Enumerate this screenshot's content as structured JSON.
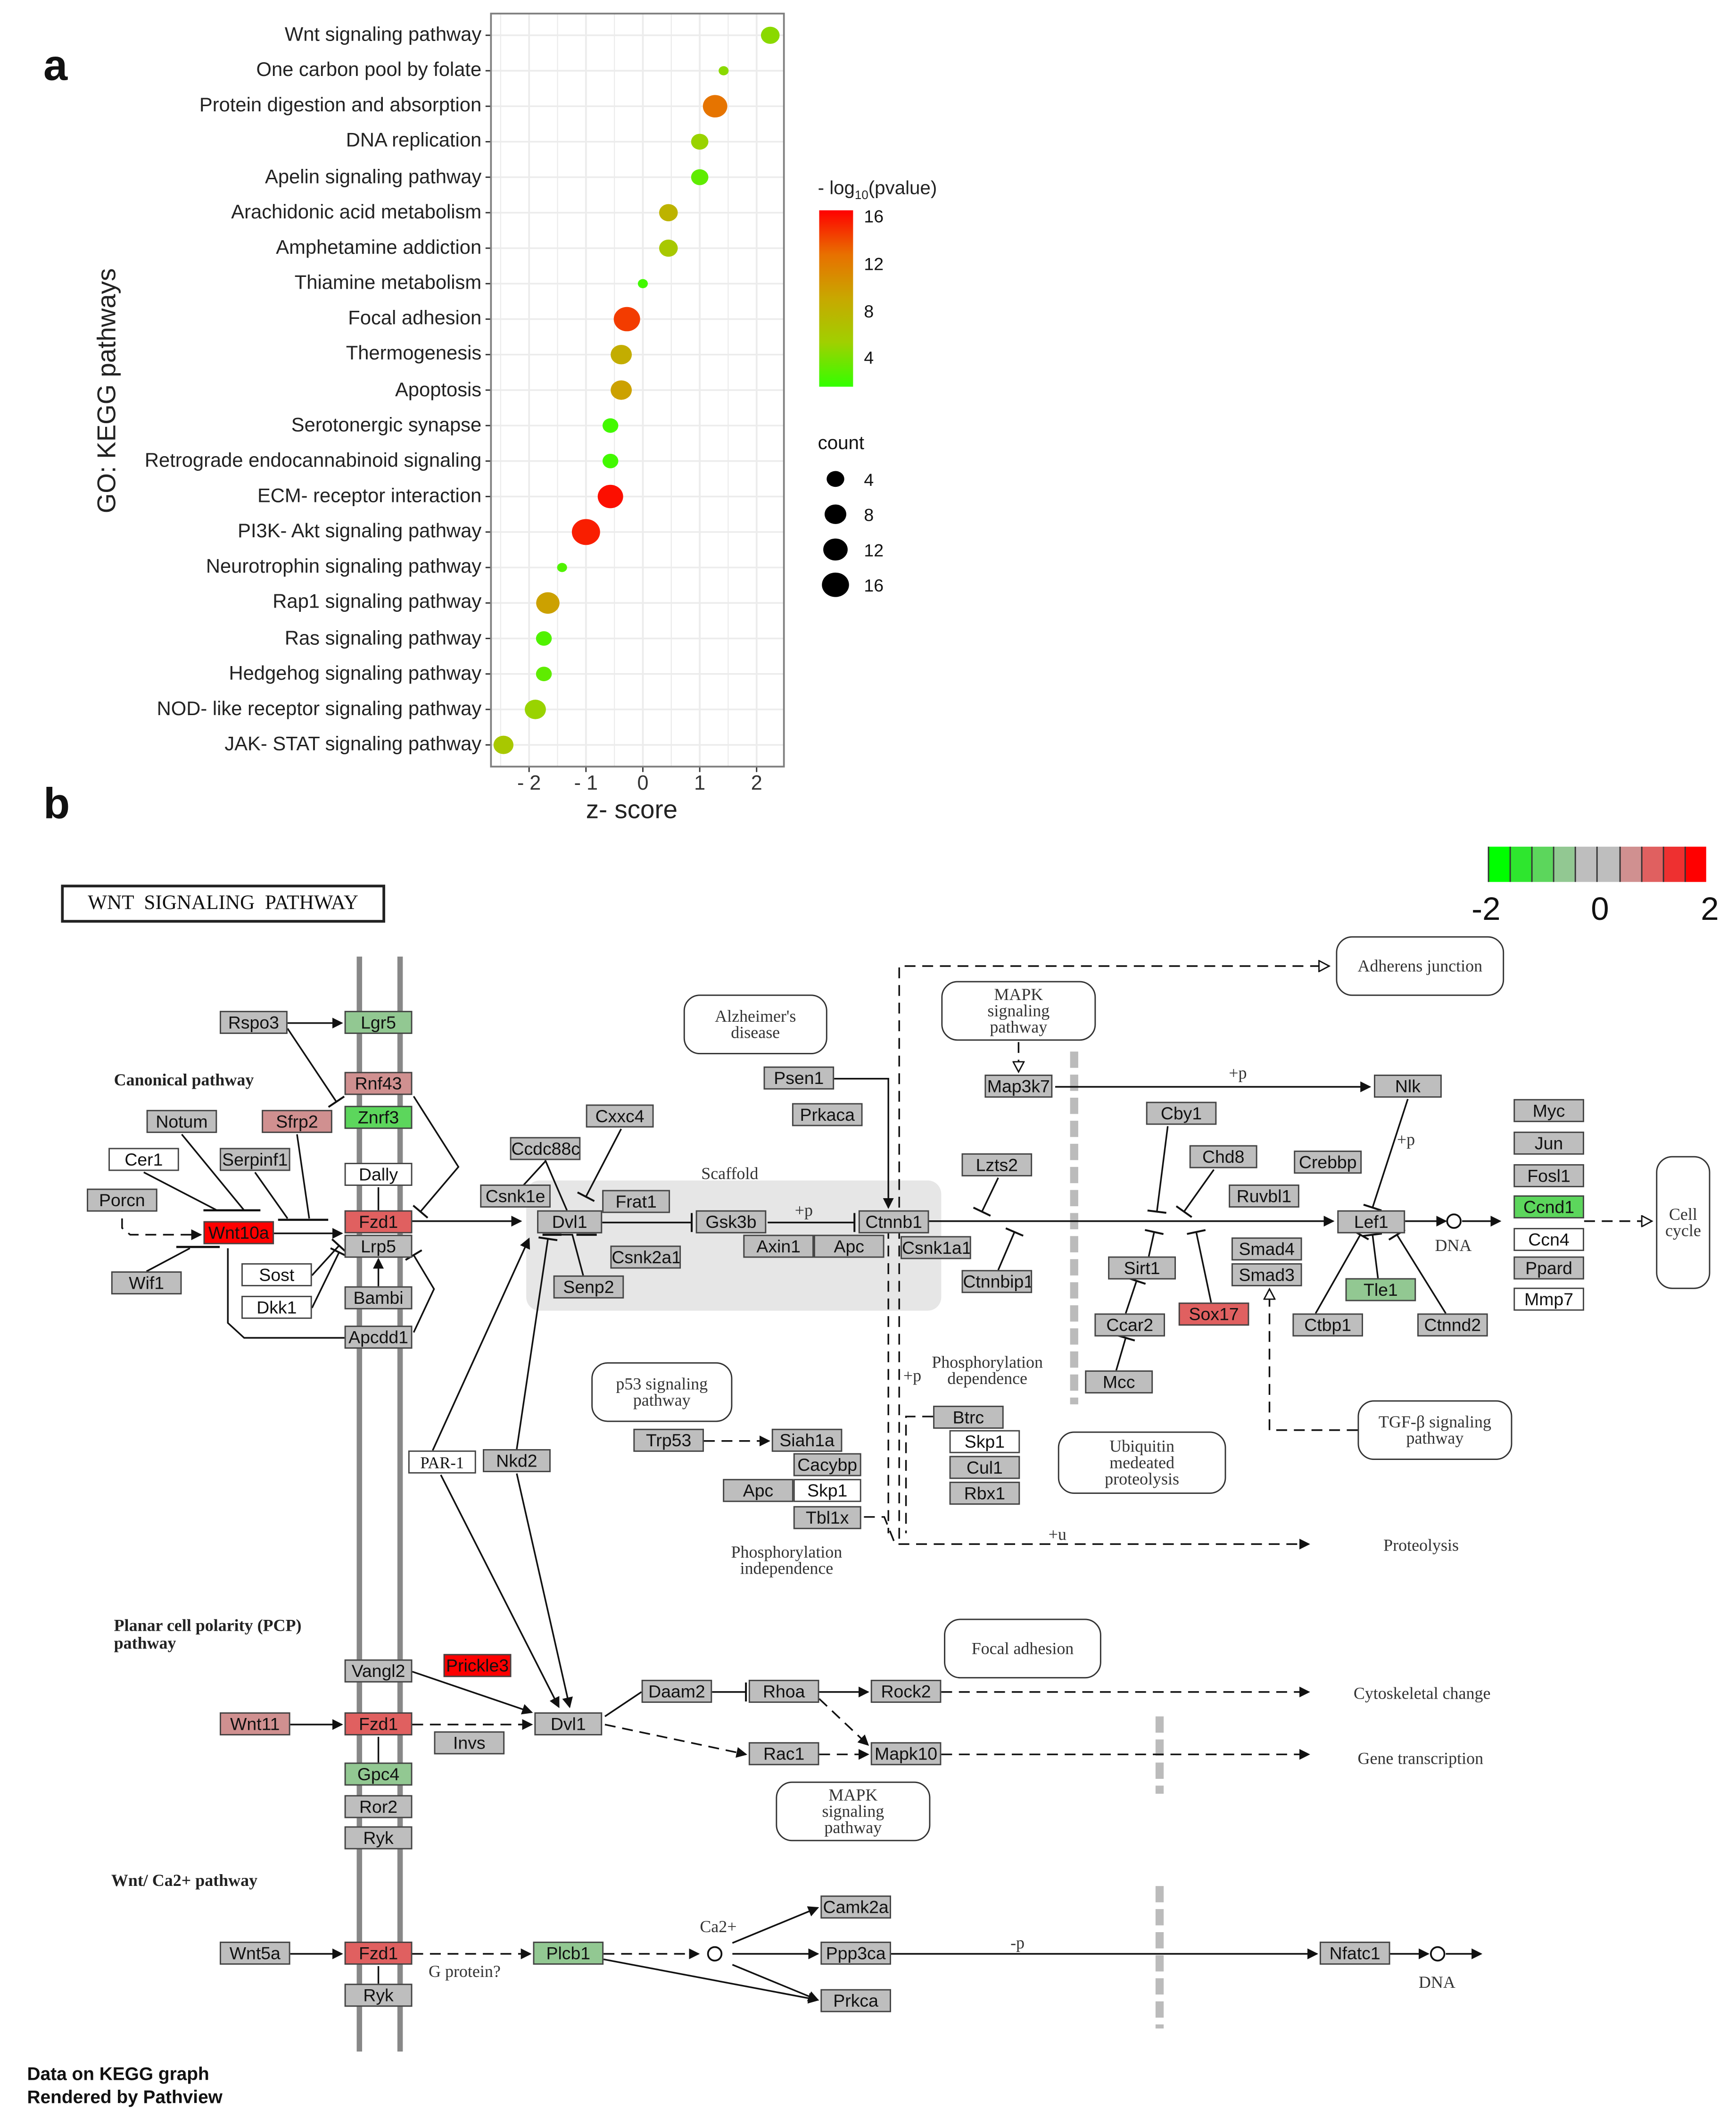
{
  "panel_labels": {
    "a": "a",
    "b": "b"
  },
  "chart_data": {
    "type": "scatter",
    "title": "",
    "xlabel": "z- score",
    "ylabel": "GO: KEGG pathways",
    "xlim": [
      -2.67,
      2.48
    ],
    "xticks": [
      -2,
      -1,
      0,
      1,
      2
    ],
    "xtick_labels": [
      "- 2",
      "- 1",
      "0",
      "1",
      "2"
    ],
    "grid": true,
    "legend_position": "right",
    "categories": [
      "Wnt signaling pathway",
      "One carbon pool by folate",
      "Protein digestion and absorption",
      "DNA replication",
      "Apelin signaling pathway",
      "Arachidonic acid metabolism",
      "Amphetamine addiction",
      "Thiamine metabolism",
      "Focal adhesion",
      "Thermogenesis",
      "Apoptosis",
      "Serotonergic synapse",
      "Retrograde endocannabinoid signaling",
      "ECM- receptor interaction",
      "PI3K- Akt signaling pathway",
      "Neurotrophin signaling pathway",
      "Rap1 signaling pathway",
      "Ras signaling pathway",
      "Hedgehog signaling pathway",
      "NOD- like receptor signaling pathway",
      "JAK- STAT signaling pathway"
    ],
    "points": [
      {
        "z": 2.24,
        "count": 7,
        "neg_log10_p": 4.5
      },
      {
        "z": 1.42,
        "count": 2,
        "neg_log10_p": 4.5
      },
      {
        "z": 1.27,
        "count": 12,
        "neg_log10_p": 12.5
      },
      {
        "z": 1.0,
        "count": 6,
        "neg_log10_p": 5
      },
      {
        "z": 1.0,
        "count": 6,
        "neg_log10_p": 3
      },
      {
        "z": 0.45,
        "count": 7,
        "neg_log10_p": 8
      },
      {
        "z": 0.45,
        "count": 7,
        "neg_log10_p": 6
      },
      {
        "z": 0.0,
        "count": 2,
        "neg_log10_p": 2
      },
      {
        "z": -0.28,
        "count": 14,
        "neg_log10_p": 14.5
      },
      {
        "z": -0.38,
        "count": 9,
        "neg_log10_p": 8.5
      },
      {
        "z": -0.38,
        "count": 9,
        "neg_log10_p": 9.5
      },
      {
        "z": -0.57,
        "count": 5,
        "neg_log10_p": 2
      },
      {
        "z": -0.57,
        "count": 5,
        "neg_log10_p": 2
      },
      {
        "z": -0.57,
        "count": 13,
        "neg_log10_p": 16
      },
      {
        "z": -1.0,
        "count": 16,
        "neg_log10_p": 15.5
      },
      {
        "z": -1.42,
        "count": 2,
        "neg_log10_p": 2.5
      },
      {
        "z": -1.67,
        "count": 11,
        "neg_log10_p": 9.5
      },
      {
        "z": -1.74,
        "count": 5,
        "neg_log10_p": 2.5
      },
      {
        "z": -1.74,
        "count": 5,
        "neg_log10_p": 3
      },
      {
        "z": -1.89,
        "count": 9,
        "neg_log10_p": 5
      },
      {
        "z": -2.45,
        "count": 8,
        "neg_log10_p": 6
      }
    ],
    "color_legend": {
      "title_prefix": "- log",
      "title_sub": "10",
      "title_suffix": "(pvalue)",
      "ticks": [
        "16",
        "12",
        "8",
        "4"
      ],
      "range": [
        1.5,
        16.5
      ],
      "colors": [
        "#33ff00",
        "#a0d000",
        "#c8a800",
        "#e87000",
        "#ff0000"
      ]
    },
    "size_legend": {
      "title": "count",
      "values": [
        "4",
        "8",
        "12",
        "16"
      ]
    }
  },
  "pathway": {
    "title": "WNT  SIGNALING  PATHWAY",
    "scale": {
      "labels": [
        "-2",
        "0",
        "2"
      ],
      "colors": [
        "#00ff00",
        "#2ee62e",
        "#5cd65c",
        "#92c892",
        "#bebebe",
        "#bebebe",
        "#d09090",
        "#e06060",
        "#ee3030",
        "#ff0000"
      ]
    },
    "genes": [
      {
        "label": "Rspo3",
        "level": 0
      },
      {
        "label": "Lgr5",
        "level": -0.6
      },
      {
        "label": "Rnf43",
        "level": 0.6
      },
      {
        "label": "Znrf3",
        "level": -1.0
      },
      {
        "label": "Notum",
        "level": 0
      },
      {
        "label": "Sfrp2",
        "level": 0.6
      },
      {
        "label": "Cer1",
        "level": null
      },
      {
        "label": "Serpinf1",
        "level": 0
      },
      {
        "label": "Dally",
        "level": null
      },
      {
        "label": "Porcn",
        "level": 0
      },
      {
        "label": "Wnt10a",
        "level": 1.9
      },
      {
        "label": "Fzd1",
        "level": 1.0
      },
      {
        "label": "Lrp5",
        "level": 0
      },
      {
        "label": "Wif1",
        "level": 0
      },
      {
        "label": "Sost",
        "level": null
      },
      {
        "label": "Dkk1",
        "level": null
      },
      {
        "label": "Bambi",
        "level": 0
      },
      {
        "label": "Apcdd1",
        "level": 0
      },
      {
        "label": "Ccdc88c",
        "level": 0
      },
      {
        "label": "Cxxc4",
        "level": 0
      },
      {
        "label": "Csnk1e",
        "level": 0
      },
      {
        "label": "Frat1",
        "level": 0
      },
      {
        "label": "Dvl1",
        "level": 0
      },
      {
        "label": "Csnk2a1",
        "level": 0
      },
      {
        "label": "Senp2",
        "level": 0
      },
      {
        "label": "Gsk3b",
        "level": 0
      },
      {
        "label": "Axin1",
        "level": 0
      },
      {
        "label": "Apc",
        "level": 0
      },
      {
        "label": "Ctnnb1",
        "level": 0
      },
      {
        "label": "Csnk1a1",
        "level": 0
      },
      {
        "label": "Psen1",
        "level": 0
      },
      {
        "label": "Prkaca",
        "level": 0
      },
      {
        "label": "Map3k7",
        "level": 0
      },
      {
        "label": "Lzts2",
        "level": 0
      },
      {
        "label": "Ctnnbip1",
        "level": 0
      },
      {
        "label": "Nlk",
        "level": 0
      },
      {
        "label": "Cby1",
        "level": 0
      },
      {
        "label": "Chd8",
        "level": 0
      },
      {
        "label": "Crebbp",
        "level": 0
      },
      {
        "label": "Ruvbl1",
        "level": 0
      },
      {
        "label": "Sirt1",
        "level": 0
      },
      {
        "label": "Smad4",
        "level": 0
      },
      {
        "label": "Smad3",
        "level": 0
      },
      {
        "label": "Ccar2",
        "level": 0
      },
      {
        "label": "Sox17",
        "level": 1.0
      },
      {
        "label": "Mcc",
        "level": 0
      },
      {
        "label": "Lef1",
        "level": 0
      },
      {
        "label": "Tle1",
        "level": -0.6
      },
      {
        "label": "Ctbp1",
        "level": 0
      },
      {
        "label": "Ctnnd2",
        "level": 0
      },
      {
        "label": "Myc",
        "level": 0
      },
      {
        "label": "Jun",
        "level": 0
      },
      {
        "label": "Fosl1",
        "level": 0
      },
      {
        "label": "Ccnd1",
        "level": -1.0
      },
      {
        "label": "Ccn4",
        "level": null
      },
      {
        "label": "Ppard",
        "level": 0
      },
      {
        "label": "Mmp7",
        "level": null
      },
      {
        "label": "Trp53",
        "level": 0
      },
      {
        "label": "Siah1a",
        "level": 0
      },
      {
        "label": "Cacybp",
        "level": 0
      },
      {
        "label": "Apc",
        "level": 0
      },
      {
        "label": "Skp1",
        "level": null
      },
      {
        "label": "Tbl1x",
        "level": 0
      },
      {
        "label": "Btrc",
        "level": 0
      },
      {
        "label": "Skp1",
        "level": null
      },
      {
        "label": "Cul1",
        "level": 0
      },
      {
        "label": "Rbx1",
        "level": 0
      },
      {
        "label": "PAR-1",
        "level": null
      },
      {
        "label": "Nkd2",
        "level": 0
      },
      {
        "label": "Vangl2",
        "level": 0
      },
      {
        "label": "Prickle3",
        "level": 1.7
      },
      {
        "label": "Wnt11",
        "level": 0.6
      },
      {
        "label": "Fzd1",
        "level": 1.0
      },
      {
        "label": "Invs",
        "level": 0
      },
      {
        "label": "Dvl1",
        "level": 0
      },
      {
        "label": "Gpc4",
        "level": -0.6
      },
      {
        "label": "Ror2",
        "level": 0
      },
      {
        "label": "Ryk",
        "level": 0
      },
      {
        "label": "Daam2",
        "level": 0
      },
      {
        "label": "Rhoa",
        "level": 0
      },
      {
        "label": "Rock2",
        "level": 0
      },
      {
        "label": "Rac1",
        "level": 0
      },
      {
        "label": "Mapk10",
        "level": 0
      },
      {
        "label": "Wnt5a",
        "level": 0
      },
      {
        "label": "Fzd1",
        "level": 1.0
      },
      {
        "label": "Ryk",
        "level": 0
      },
      {
        "label": "Plcb1",
        "level": -0.6
      },
      {
        "label": "Camk2a",
        "level": 0
      },
      {
        "label": "Ppp3ca",
        "level": 0
      },
      {
        "label": "Prkca",
        "level": 0
      },
      {
        "label": "Nfatc1",
        "level": 0
      }
    ],
    "linked_pathways": [
      "Alzheimer's disease",
      "MAPK signaling pathway",
      "Adherens junction",
      "p53 signaling pathway",
      "Ubiquitin medeated proteolysis",
      "TGF-β signaling pathway",
      "Focal adhesion",
      "MAPK signaling pathway",
      "Cell cycle"
    ],
    "annotations": {
      "canonical": "Canonical pathway",
      "scaffold": "Scaffold",
      "phos_dep": "Phosphorylation dependence",
      "phos_indep": "Phosphorylation independence",
      "proteolysis": "Proteolysis",
      "dna1": "DNA",
      "dna2": "DNA",
      "cytoskeletal": "Cytoskeletal change",
      "gene_transcription": "Gene transcription",
      "pcp": "Planar cell polarity (PCP) pathway",
      "ca_pathway": "Wnt/ Ca2+ pathway",
      "g_protein": "G protein?",
      "ca": "Ca2+",
      "plus_p1": "+p",
      "plus_p2": "+p",
      "plus_p3": "+p",
      "plus_p4": "+p",
      "minus_p": "-p",
      "plus_u": "+u"
    },
    "footer": {
      "line1": "Data on KEGG graph",
      "line2": "Rendered by Pathview"
    }
  }
}
